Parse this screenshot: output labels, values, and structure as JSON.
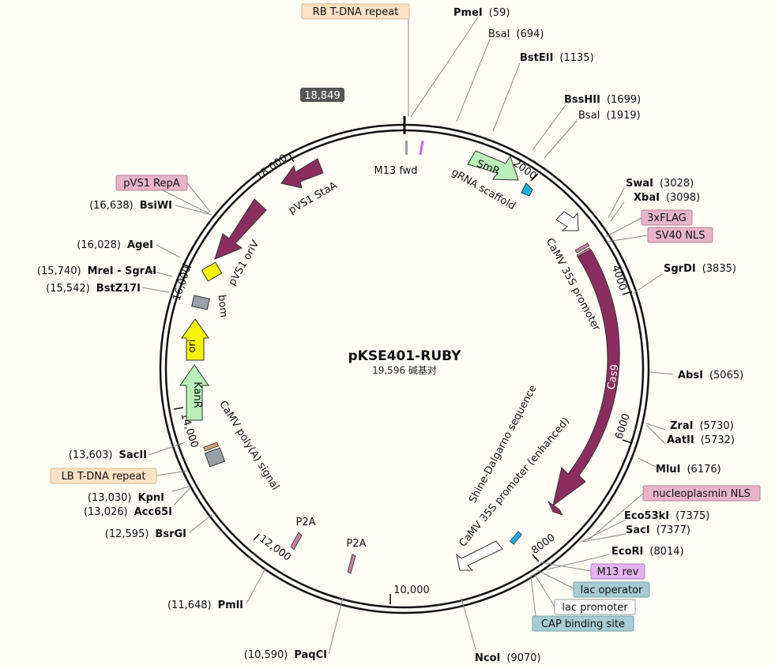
{
  "plasmid": {
    "name": "pKSE401-RUBY",
    "size_label": "19,596 碱基对",
    "total_bp": 19596
  },
  "origin_marker": "18,849",
  "colors": {
    "ring": "#111111",
    "feature_purple": "#8b2e5f",
    "feature_green": "#b9f0b9",
    "feature_yellow": "#f5f500",
    "feature_gray": "#9aa0a8",
    "feature_white": "#ffffff",
    "primer_purple": "#cc66ee",
    "cyan": "#20b0e0",
    "badge_peach": "#fde2c6",
    "badge_pink": "#e8b4c8",
    "badge_lilac": "#e2b4f0",
    "badge_blue": "#a8ccd4",
    "background": "#fefdf6"
  },
  "scale_ticks": [
    "2000",
    "4000",
    "6000",
    "8000",
    "10,000",
    "12,000",
    "14,000",
    "16,000",
    "18,000"
  ],
  "sites": [
    {
      "name": "PmeI",
      "pos": "(59)",
      "bold": true
    },
    {
      "name": "BsaI",
      "pos": "(694)",
      "bold": false
    },
    {
      "name": "BstEII",
      "pos": "(1135)",
      "bold": true
    },
    {
      "name": "BssHII",
      "pos": "(1699)",
      "bold": true
    },
    {
      "name": "BsaI",
      "pos": "(1919)",
      "bold": false
    },
    {
      "name": "SwaI",
      "pos": "(3028)",
      "bold": true
    },
    {
      "name": "XbaI",
      "pos": "(3098)",
      "bold": true
    },
    {
      "name": "SgrDI",
      "pos": "(3835)",
      "bold": true
    },
    {
      "name": "AbsI",
      "pos": "(5065)",
      "bold": true
    },
    {
      "name": "ZraI",
      "pos": "(5730)",
      "bold": true
    },
    {
      "name": "AatII",
      "pos": "(5732)",
      "bold": true
    },
    {
      "name": "MluI",
      "pos": "(6176)",
      "bold": true
    },
    {
      "name": "Eco53kI",
      "pos": "(7375)",
      "bold": true
    },
    {
      "name": "SacI",
      "pos": "(7377)",
      "bold": true
    },
    {
      "name": "EcoRI",
      "pos": "(8014)",
      "bold": true
    },
    {
      "name": "NcoI",
      "pos": "(9070)",
      "bold": true
    },
    {
      "name": "PaqCI",
      "pos": "(10,590)",
      "bold": true
    },
    {
      "name": "PmlI",
      "pos": "(11,648)",
      "bold": true
    },
    {
      "name": "BsrGI",
      "pos": "(12,595)",
      "bold": true
    },
    {
      "name": "Acc65I",
      "pos": "(13,026)",
      "bold": true
    },
    {
      "name": "KpnI",
      "pos": "(13,030)",
      "bold": true
    },
    {
      "name": "SacII",
      "pos": "(13,603)",
      "bold": true
    },
    {
      "name": "BstZ17I",
      "pos": "(15,542)",
      "bold": true
    },
    {
      "name": "MreI - SgrAI",
      "pos": "(15,740)",
      "bold": true
    },
    {
      "name": "AgeI",
      "pos": "(16,028)",
      "bold": true
    },
    {
      "name": "BsiWI",
      "pos": "(16,638)",
      "bold": true
    }
  ],
  "badges": [
    "RB T-DNA repeat",
    "3xFLAG",
    "SV40 NLS",
    "nucleoplasmin NLS",
    "M13 rev",
    "lac operator",
    "lac promoter",
    "CAP binding site",
    "LB T-DNA repeat",
    "pVS1 RepA"
  ],
  "features": [
    "SmR",
    "gRNA scaffold",
    "M13 fwd",
    "CaMV 35S promoter",
    "Cas9",
    "Shine-Dalgarno sequence",
    "CaMV 35S promoter (enhanced)",
    "P2A",
    "P2A",
    "CaMV poly(A) signal",
    "KanR",
    "ori",
    "bom",
    "pVS1 oriV",
    "pVS1 StaA"
  ]
}
